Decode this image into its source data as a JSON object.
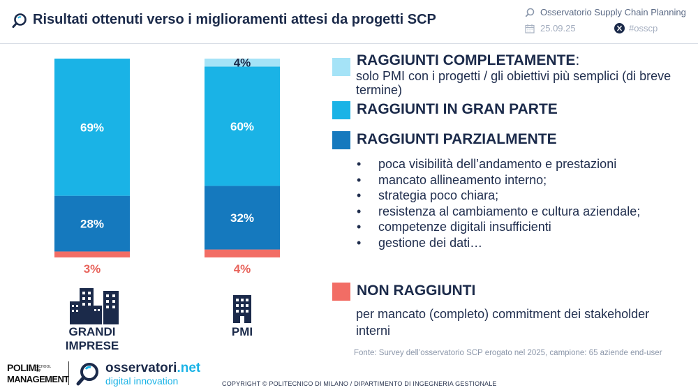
{
  "header": {
    "title": "Risultati ottenuti verso i miglioramenti attesi da progetti SCP",
    "observatory": "Osservatorio Supply Chain Planning",
    "date": "25.09.25",
    "hashtag": "#osscp"
  },
  "chart_data": {
    "type": "bar",
    "stacked": true,
    "categories": [
      "GRANDI IMPRESE",
      "PMI"
    ],
    "series": [
      {
        "name": "NON RAGGIUNTI",
        "color": "#f26d65",
        "values": [
          3,
          4
        ],
        "labels": [
          "3%",
          "4%"
        ]
      },
      {
        "name": "RAGGIUNTI PARZIALMENTE",
        "color": "#1579be",
        "values": [
          28,
          32
        ],
        "labels": [
          "28%",
          "32%"
        ]
      },
      {
        "name": "RAGGIUNTI IN GRAN PARTE",
        "color": "#1ab3e6",
        "values": [
          69,
          60
        ],
        "labels": [
          "69%",
          "60%"
        ]
      },
      {
        "name": "RAGGIUNTI COMPLETAMENTE",
        "color": "#a5e3f7",
        "values": [
          0,
          4
        ],
        "labels": [
          "",
          "4%"
        ]
      }
    ],
    "ylim": [
      0,
      100
    ]
  },
  "category_icons": [
    "city-buildings-icon",
    "single-building-icon"
  ],
  "legend": {
    "completamente": {
      "head": "RAGGIUNTI COMPLETAMENTE",
      "colon": ":",
      "sub": "solo PMI con i progetti / gli obiettivi più semplici (di breve termine)"
    },
    "gran_parte": {
      "head": "RAGGIUNTI IN GRAN PARTE"
    },
    "parzialmente": {
      "head": "RAGGIUNTI PARZIALMENTE",
      "bullets": [
        "poca visibilità dell’andamento e prestazioni",
        "mancato allineamento interno;",
        "strategia poco chiara;",
        "resistenza al cambiamento e cultura aziendale;",
        "competenze digitali insufficienti",
        "gestione dei dati…"
      ]
    },
    "non_raggiunti": {
      "head": "NON RAGGIUNTI",
      "sub": "per mancato (completo) commitment dei stakeholder interni"
    }
  },
  "source": "Fonte: Survey dell’osservatorio SCP erogato nel 2025, campione: 65 aziende end-user",
  "footer": {
    "polimi_line1": "POLIMI",
    "polimi_line2": "MANAGEMENT",
    "polimi_school": "SCHOOL OF",
    "osservatori": "osservatori",
    "osservatori_net": ".net",
    "digital": "digital innovation",
    "copyright": "COPYRIGHT © POLITECNICO DI MILANO / DIPARTIMENTO DI INGEGNERIA GESTIONALE"
  },
  "colors": {
    "navy": "#1b2a4a",
    "label_red": "#e8645c"
  }
}
